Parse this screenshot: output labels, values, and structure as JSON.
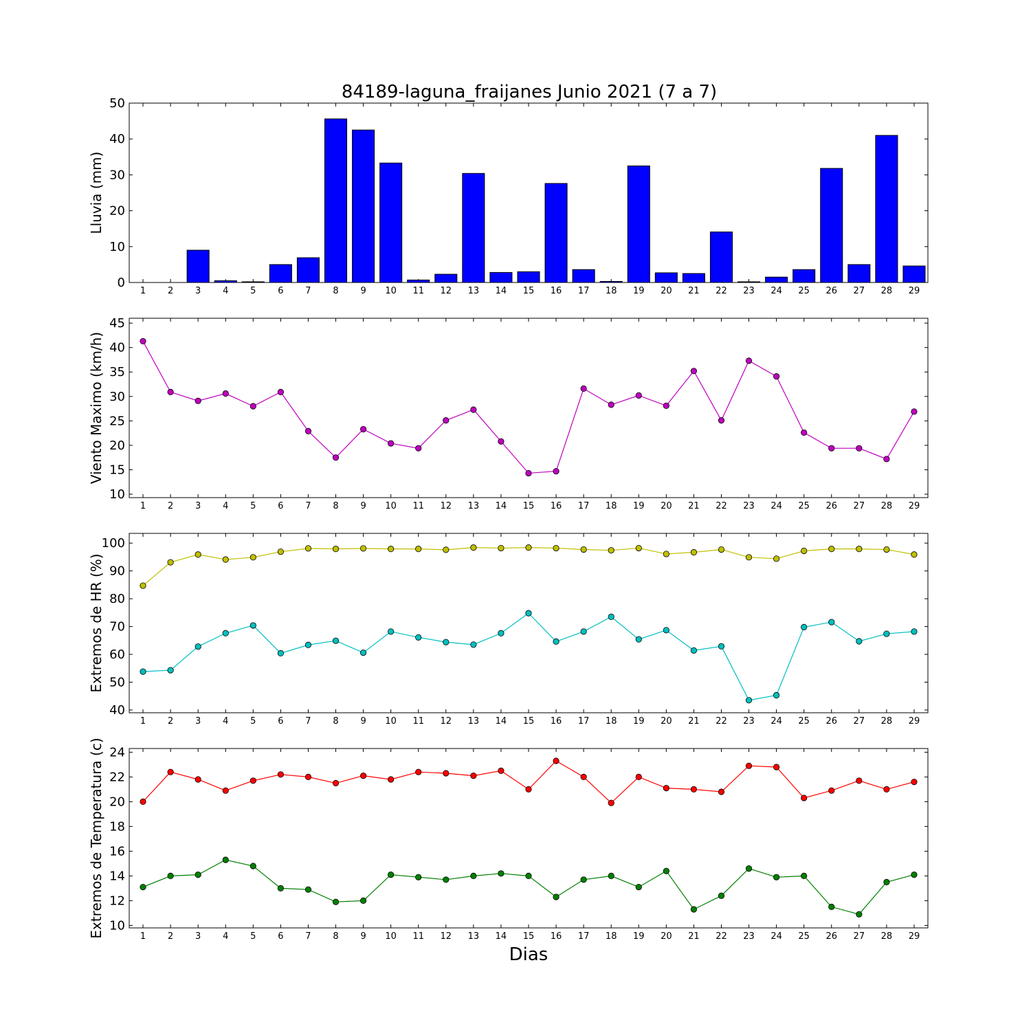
{
  "figure": {
    "title": "84189-laguna_fraijanes Junio 2021  (7 a 7)",
    "xlabel": "Dias"
  },
  "chart_data": [
    {
      "type": "bar",
      "ylabel": "Lluvia (mm)",
      "ylim": [
        0,
        50
      ],
      "yticks": [
        0,
        10,
        20,
        30,
        40,
        50
      ],
      "categories": [
        "1",
        "2",
        "3",
        "4",
        "5",
        "6",
        "7",
        "8",
        "9",
        "10",
        "11",
        "12",
        "13",
        "14",
        "15",
        "16",
        "17",
        "18",
        "19",
        "20",
        "21",
        "22",
        "23",
        "24",
        "25",
        "26",
        "27",
        "28",
        "29"
      ],
      "series": [
        {
          "color": "#0000ff",
          "values": [
            0,
            0,
            9.0,
            0.5,
            0.2,
            5.0,
            6.9,
            45.6,
            42.5,
            33.3,
            0.7,
            2.3,
            30.4,
            2.8,
            3.0,
            27.6,
            3.6,
            0.3,
            32.5,
            2.7,
            2.5,
            14.1,
            0.2,
            1.5,
            3.6,
            31.8,
            5.0,
            41.0,
            4.6
          ]
        }
      ]
    },
    {
      "type": "line",
      "ylabel": "Viento Maximo (km/h)",
      "ylim": [
        9.3,
        46
      ],
      "yticks": [
        10,
        15,
        20,
        25,
        30,
        35,
        40,
        45
      ],
      "x": [
        1,
        2,
        3,
        4,
        5,
        6,
        7,
        8,
        9,
        10,
        11,
        12,
        13,
        14,
        15,
        16,
        17,
        18,
        19,
        20,
        21,
        22,
        23,
        24,
        25,
        26,
        27,
        28,
        29
      ],
      "series": [
        {
          "color": "#bf00bf",
          "values": [
            41.3,
            30.9,
            29.1,
            30.6,
            28.0,
            30.9,
            22.9,
            17.5,
            23.3,
            20.4,
            19.4,
            25.1,
            27.3,
            20.8,
            14.3,
            14.7,
            31.6,
            28.3,
            30.2,
            28.1,
            35.2,
            25.1,
            37.3,
            34.1,
            22.6,
            19.4,
            19.4,
            17.2,
            26.9
          ]
        }
      ]
    },
    {
      "type": "line",
      "ylabel": "Extremos de HR (%)",
      "ylim": [
        39,
        103.5
      ],
      "yticks": [
        40,
        50,
        60,
        70,
        80,
        90,
        100
      ],
      "x": [
        1,
        2,
        3,
        4,
        5,
        6,
        7,
        8,
        9,
        10,
        11,
        12,
        13,
        14,
        15,
        16,
        17,
        18,
        19,
        20,
        21,
        22,
        23,
        24,
        25,
        26,
        27,
        28,
        29
      ],
      "series": [
        {
          "color": "#bfbf00",
          "values": [
            84.7,
            93.1,
            95.9,
            94.1,
            94.9,
            96.9,
            98.1,
            97.9,
            98.1,
            97.9,
            97.9,
            97.6,
            98.4,
            98.2,
            98.4,
            98.2,
            97.7,
            97.4,
            98.2,
            96.1,
            96.7,
            97.7,
            94.9,
            94.4,
            97.2,
            97.9,
            97.9,
            97.7,
            95.9
          ]
        },
        {
          "color": "#00bfbf",
          "values": [
            53.8,
            54.3,
            62.8,
            67.6,
            70.4,
            60.4,
            63.4,
            64.9,
            60.6,
            68.2,
            66.1,
            64.4,
            63.5,
            67.6,
            74.8,
            64.6,
            68.2,
            73.5,
            65.4,
            68.7,
            61.4,
            62.9,
            43.5,
            45.3,
            69.8,
            71.6,
            64.7,
            67.4,
            68.2
          ]
        }
      ]
    },
    {
      "type": "line",
      "ylabel": "Extremos de Temperatura (c)",
      "ylim": [
        9.8,
        24.3
      ],
      "yticks": [
        10,
        12,
        14,
        16,
        18,
        20,
        22,
        24
      ],
      "x": [
        1,
        2,
        3,
        4,
        5,
        6,
        7,
        8,
        9,
        10,
        11,
        12,
        13,
        14,
        15,
        16,
        17,
        18,
        19,
        20,
        21,
        22,
        23,
        24,
        25,
        26,
        27,
        28,
        29
      ],
      "series": [
        {
          "color": "#ff0000",
          "values": [
            20.0,
            22.4,
            21.8,
            20.9,
            21.7,
            22.2,
            22.0,
            21.5,
            22.1,
            21.8,
            22.4,
            22.3,
            22.1,
            22.5,
            21.0,
            23.3,
            22.0,
            19.9,
            22.0,
            21.1,
            21.0,
            20.8,
            22.9,
            22.8,
            20.3,
            20.9,
            21.7,
            21.0,
            21.6
          ]
        },
        {
          "color": "#008000",
          "values": [
            13.1,
            14.0,
            14.1,
            15.3,
            14.8,
            13.0,
            12.9,
            11.9,
            12.0,
            14.1,
            13.9,
            13.7,
            14.0,
            14.2,
            14.0,
            12.3,
            13.7,
            14.0,
            13.1,
            14.4,
            11.3,
            12.4,
            14.6,
            13.9,
            14.0,
            11.5,
            10.9,
            13.5,
            14.1
          ]
        }
      ]
    }
  ]
}
